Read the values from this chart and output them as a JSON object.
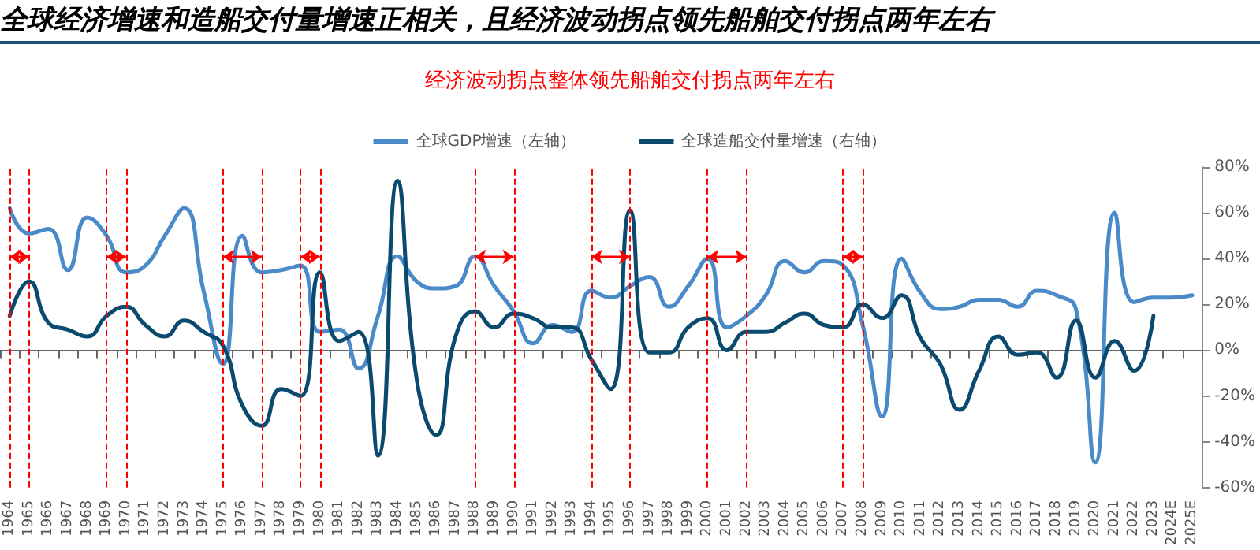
{
  "chart_data": {
    "type": "line",
    "title": "全球经济增速和造船交付量增速正相关，且经济波动拐点领先船舶交付拐点两年左右",
    "subtitle": "经济波动拐点整体领先船舶交付拐点两年左右",
    "categories": [
      "1964",
      "1965",
      "1966",
      "1967",
      "1968",
      "1969",
      "1970",
      "1971",
      "1972",
      "1973",
      "1974",
      "1975",
      "1976",
      "1977",
      "1978",
      "1979",
      "1980",
      "1981",
      "1982",
      "1983",
      "1984",
      "1985",
      "1986",
      "1987",
      "1988",
      "1989",
      "1990",
      "1991",
      "1992",
      "1993",
      "1994",
      "1995",
      "1996",
      "1997",
      "1998",
      "1999",
      "2000",
      "2001",
      "2002",
      "2003",
      "2004",
      "2005",
      "2006",
      "2007",
      "2008",
      "2009",
      "2010",
      "2011",
      "2012",
      "2013",
      "2014",
      "2015",
      "2016",
      "2017",
      "2018",
      "2019",
      "2020",
      "2021",
      "2022",
      "2023",
      "2024E",
      "2025E"
    ],
    "series": [
      {
        "name": "全球GDP增速（左轴）",
        "color": "#4a8ac9",
        "values": [
          62,
          51,
          53,
          35,
          58,
          50,
          34,
          37,
          50,
          62,
          26,
          -6,
          50,
          34,
          35,
          37,
          8,
          9,
          -8,
          15,
          41,
          30,
          27,
          28,
          41,
          28,
          17,
          3,
          11,
          8,
          26,
          23,
          28,
          32,
          19,
          28,
          40,
          10,
          15,
          24,
          39,
          34,
          39,
          37,
          11,
          -29,
          40,
          25,
          18,
          19,
          22,
          22,
          19,
          26,
          24,
          18,
          -49,
          60,
          21,
          23,
          23,
          24
        ]
      },
      {
        "name": "全球造船交付量增速（右轴）",
        "color": "#0b4a6f",
        "values": [
          15,
          30,
          12,
          9,
          6,
          15,
          19,
          11,
          6,
          13,
          8,
          2,
          -24,
          -33,
          -17,
          -20,
          34,
          4,
          8,
          -46,
          74,
          -13,
          -37,
          6,
          17,
          10,
          16,
          14,
          10,
          10,
          -4,
          -17,
          61,
          -1,
          -1,
          10,
          14,
          0,
          8,
          8,
          12,
          16,
          11,
          10,
          20,
          14,
          24,
          5,
          -6,
          -26,
          -9,
          6,
          -2,
          -1,
          -12,
          13,
          -12,
          4,
          -9,
          15,
          null,
          null
        ]
      }
    ],
    "ylim": [
      -60,
      80
    ],
    "yticks": [
      {
        "value": 80,
        "label": "80%"
      },
      {
        "value": 60,
        "label": "60%"
      },
      {
        "value": 40,
        "label": "40%"
      },
      {
        "value": 20,
        "label": "20%"
      },
      {
        "value": 0,
        "label": "0%"
      },
      {
        "value": -20,
        "label": "-20%"
      },
      {
        "value": -40,
        "label": "-40%"
      },
      {
        "value": -60,
        "label": "-60%"
      }
    ],
    "ref_lines": [
      {
        "axis": "x",
        "value": "1964",
        "color": "#ff0000",
        "line_style": "dashed"
      },
      {
        "axis": "x",
        "value": "1965",
        "color": "#ff0000",
        "line_style": "dashed"
      },
      {
        "axis": "x",
        "value": "1969",
        "color": "#ff0000",
        "line_style": "dashed"
      },
      {
        "axis": "x",
        "value": "1970",
        "color": "#ff0000",
        "line_style": "dashed"
      },
      {
        "axis": "x",
        "value": "1975",
        "color": "#ff0000",
        "line_style": "dashed"
      },
      {
        "axis": "x",
        "value": "1977",
        "color": "#ff0000",
        "line_style": "dashed"
      },
      {
        "axis": "x",
        "value": "1979",
        "color": "#ff0000",
        "line_style": "dashed"
      },
      {
        "axis": "x",
        "value": "1980",
        "color": "#ff0000",
        "line_style": "dashed"
      },
      {
        "axis": "x",
        "value": "1988",
        "color": "#ff0000",
        "line_style": "dashed"
      },
      {
        "axis": "x",
        "value": "1990",
        "color": "#ff0000",
        "line_style": "dashed"
      },
      {
        "axis": "x",
        "value": "1994",
        "color": "#ff0000",
        "line_style": "dashed"
      },
      {
        "axis": "x",
        "value": "1996",
        "color": "#ff0000",
        "line_style": "dashed"
      },
      {
        "axis": "x",
        "value": "2000",
        "color": "#ff0000",
        "line_style": "dashed"
      },
      {
        "axis": "x",
        "value": "2002",
        "color": "#ff0000",
        "line_style": "dashed"
      },
      {
        "axis": "x",
        "value": "2007",
        "color": "#ff0000",
        "line_style": "dashed"
      },
      {
        "axis": "x",
        "value": "2008",
        "color": "#ff0000",
        "line_style": "dashed"
      }
    ],
    "legend": "top",
    "grid": false,
    "marker": "none",
    "line_style": "solid"
  }
}
